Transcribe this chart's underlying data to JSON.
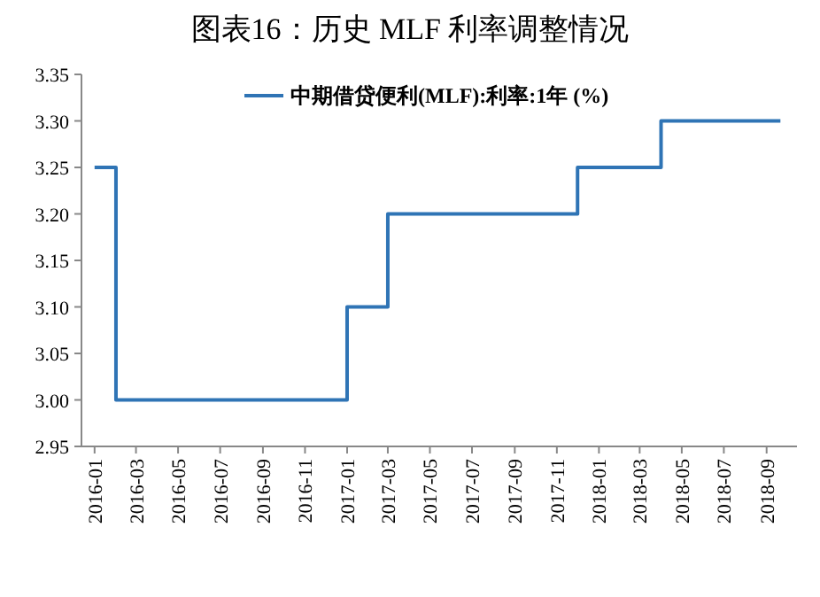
{
  "chart_data": {
    "type": "step",
    "title": "图表16：历史 MLF 利率调整情况",
    "x": [
      "2016-01-01",
      "2016-02-01",
      "2017-01-01",
      "2017-03-01",
      "2017-12-01",
      "2018-04-01",
      "2018-09-21"
    ],
    "series": [
      {
        "name": "中期借贷便利(MLF):利率:1年 (%)",
        "color": "#2f74b5",
        "values": [
          3.25,
          3.0,
          3.1,
          3.2,
          3.25,
          3.3,
          3.3
        ]
      }
    ],
    "xlim": [
      "2015-12-13",
      "2018-10-15"
    ],
    "xticks": [
      "2016-01",
      "2016-03",
      "2016-05",
      "2016-07",
      "2016-09",
      "2016-11",
      "2017-01",
      "2017-03",
      "2017-05",
      "2017-07",
      "2017-09",
      "2017-11",
      "2018-01",
      "2018-03",
      "2018-05",
      "2018-07",
      "2018-09"
    ],
    "ylim": [
      2.95,
      3.35
    ],
    "yticks": [
      {
        "value": 2.95,
        "label": "2.95"
      },
      {
        "value": 3.0,
        "label": "3.00"
      },
      {
        "value": 3.05,
        "label": "3.05"
      },
      {
        "value": 3.1,
        "label": "3.10"
      },
      {
        "value": 3.15,
        "label": "3.15"
      },
      {
        "value": 3.2,
        "label": "3.20"
      },
      {
        "value": 3.25,
        "label": "3.25"
      },
      {
        "value": 3.3,
        "label": "3.30"
      },
      {
        "value": 3.35,
        "label": "3.35"
      }
    ],
    "legend": "top",
    "grid": false
  }
}
